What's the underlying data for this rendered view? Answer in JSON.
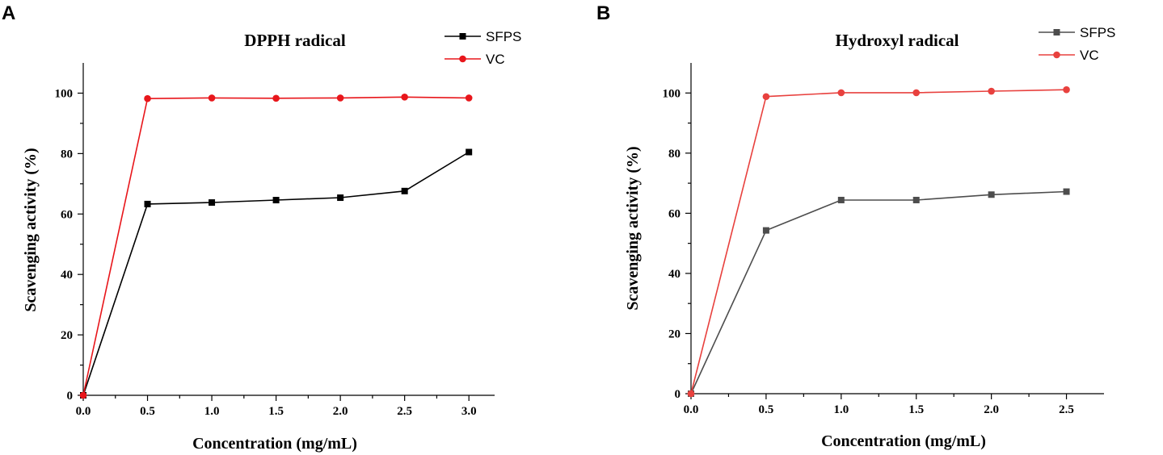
{
  "figure": {
    "panel_labels": [
      "A",
      "B"
    ]
  },
  "chart_data": [
    {
      "type": "line",
      "panel": "A",
      "title": "DPPH radical",
      "xlabel": "Concentration (mg/mL)",
      "ylabel": "Scavenging activity (%)",
      "xlim": [
        0,
        3.2
      ],
      "ylim": [
        0,
        110
      ],
      "xticks": [
        "0.0",
        "0.5",
        "1.0",
        "1.5",
        "2.0",
        "2.5",
        "3.0"
      ],
      "xtick_values": [
        0,
        0.5,
        1.0,
        1.5,
        2.0,
        2.5,
        3.0
      ],
      "yticks": [
        "0",
        "20",
        "40",
        "60",
        "80",
        "100"
      ],
      "ytick_values": [
        0,
        20,
        40,
        60,
        80,
        100
      ],
      "legend_position": "top-right",
      "series": [
        {
          "name": "SFPS",
          "color": "#000000",
          "marker": "square",
          "x": [
            0,
            0.5,
            1.0,
            1.5,
            2.0,
            2.5,
            3.0
          ],
          "values": [
            0,
            63.3,
            63.8,
            64.6,
            65.4,
            67.6,
            80.5
          ]
        },
        {
          "name": "VC",
          "color": "#e8161b",
          "marker": "circle",
          "x": [
            0,
            0.5,
            1.0,
            1.5,
            2.0,
            2.5,
            3.0
          ],
          "values": [
            0,
            98.2,
            98.4,
            98.3,
            98.4,
            98.7,
            98.4
          ]
        }
      ]
    },
    {
      "type": "line",
      "panel": "B",
      "title": "Hydroxyl radical",
      "xlabel": "Concentration (mg/mL)",
      "ylabel": "Scavenging activity (%)",
      "xlim": [
        0,
        2.75
      ],
      "ylim": [
        0,
        110
      ],
      "xticks": [
        "0.0",
        "0.5",
        "1.0",
        "1.5",
        "2.0",
        "2.5"
      ],
      "xtick_values": [
        0,
        0.5,
        1.0,
        1.5,
        2.0,
        2.5
      ],
      "yticks": [
        "0",
        "20",
        "40",
        "60",
        "80",
        "100"
      ],
      "ytick_values": [
        0,
        20,
        40,
        60,
        80,
        100
      ],
      "legend_position": "top-right",
      "series": [
        {
          "name": "SFPS",
          "color": "#4d4d4d",
          "marker": "square",
          "x": [
            0,
            0.5,
            1.0,
            1.5,
            2.0,
            2.5
          ],
          "values": [
            0,
            54.3,
            64.4,
            64.4,
            66.2,
            67.2
          ]
        },
        {
          "name": "VC",
          "color": "#e8413e",
          "marker": "circle",
          "x": [
            0,
            0.5,
            1.0,
            1.5,
            2.0,
            2.5
          ],
          "values": [
            0,
            98.8,
            100.1,
            100.1,
            100.6,
            101.1
          ]
        }
      ]
    }
  ]
}
